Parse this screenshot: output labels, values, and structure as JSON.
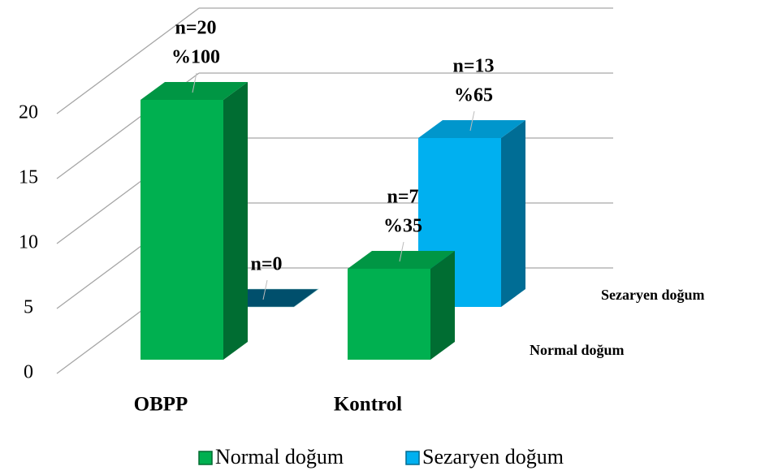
{
  "chart_data": {
    "type": "bar",
    "categories": [
      "OBPP",
      "Kontrol"
    ],
    "series": [
      {
        "name": "Normal doğum",
        "color": "#00b050",
        "values": [
          20,
          7
        ],
        "value_labels": [
          [
            "n=20",
            "%100"
          ],
          [
            "n=7",
            "%35"
          ]
        ]
      },
      {
        "name": "Sezaryen doğum",
        "color": "#00b0f0",
        "values": [
          0,
          13
        ],
        "value_labels": [
          [
            "n=0"
          ],
          [
            "n=13",
            "%65"
          ]
        ]
      }
    ],
    "ylim": [
      0,
      20
    ],
    "yticks": [
      0,
      5,
      10,
      15,
      20
    ],
    "grid": true,
    "legend": "bottom"
  }
}
